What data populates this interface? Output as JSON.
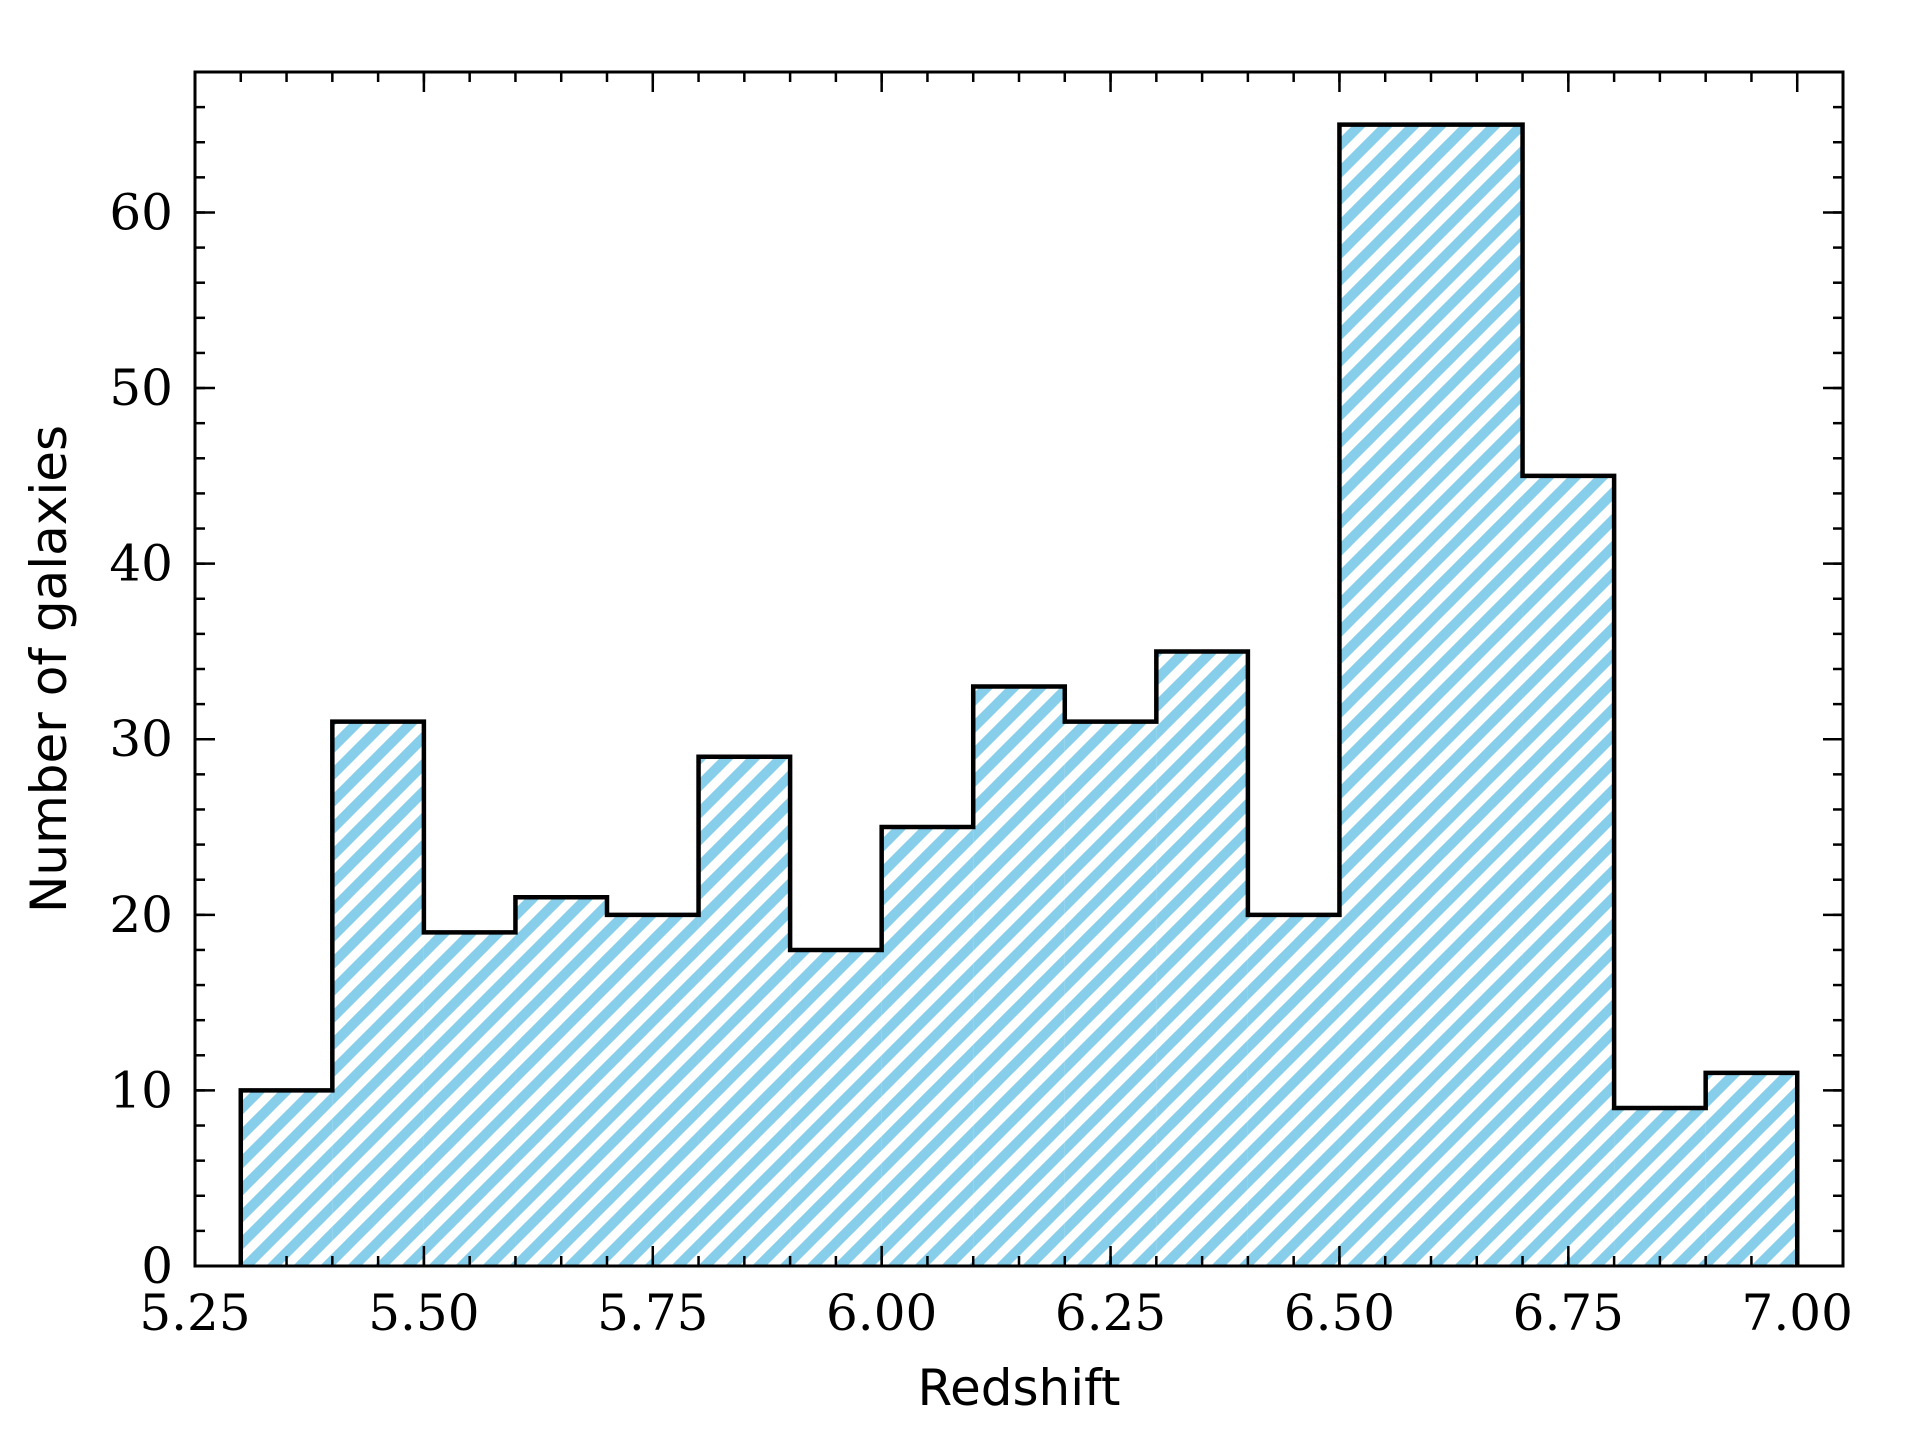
{
  "chart_data": {
    "type": "bar",
    "subtype": "histogram-step-hatched",
    "xlabel": "Redshift",
    "ylabel": "Number of galaxies",
    "xlim": [
      5.25,
      7.05
    ],
    "ylim": [
      0,
      68
    ],
    "x_ticks": [
      5.25,
      5.5,
      5.75,
      6.0,
      6.25,
      6.5,
      6.75,
      7.0
    ],
    "x_tick_labels": [
      "5.25",
      "5.50",
      "5.75",
      "6.00",
      "6.25",
      "6.50",
      "6.75",
      "7.00"
    ],
    "x_minor_step": 0.05,
    "y_ticks": [
      0,
      10,
      20,
      30,
      40,
      50,
      60
    ],
    "y_tick_labels": [
      "0",
      "10",
      "20",
      "30",
      "40",
      "50",
      "60"
    ],
    "y_minor_step": 2,
    "bin_edges": [
      5.3,
      5.4,
      5.5,
      5.6,
      5.7,
      5.8,
      5.9,
      6.0,
      6.1,
      6.2,
      6.3,
      6.4,
      6.5,
      6.6,
      6.7,
      6.8,
      6.9,
      7.0
    ],
    "values": [
      10,
      31,
      19,
      21,
      20,
      29,
      18,
      25,
      33,
      31,
      35,
      20,
      65,
      65,
      45,
      9,
      11
    ],
    "hatch": "diagonal-stripes",
    "colors": {
      "hatch": "#87CEEB",
      "edge": "#000000",
      "background": "#ffffff"
    },
    "grid": false,
    "legend": false
  }
}
